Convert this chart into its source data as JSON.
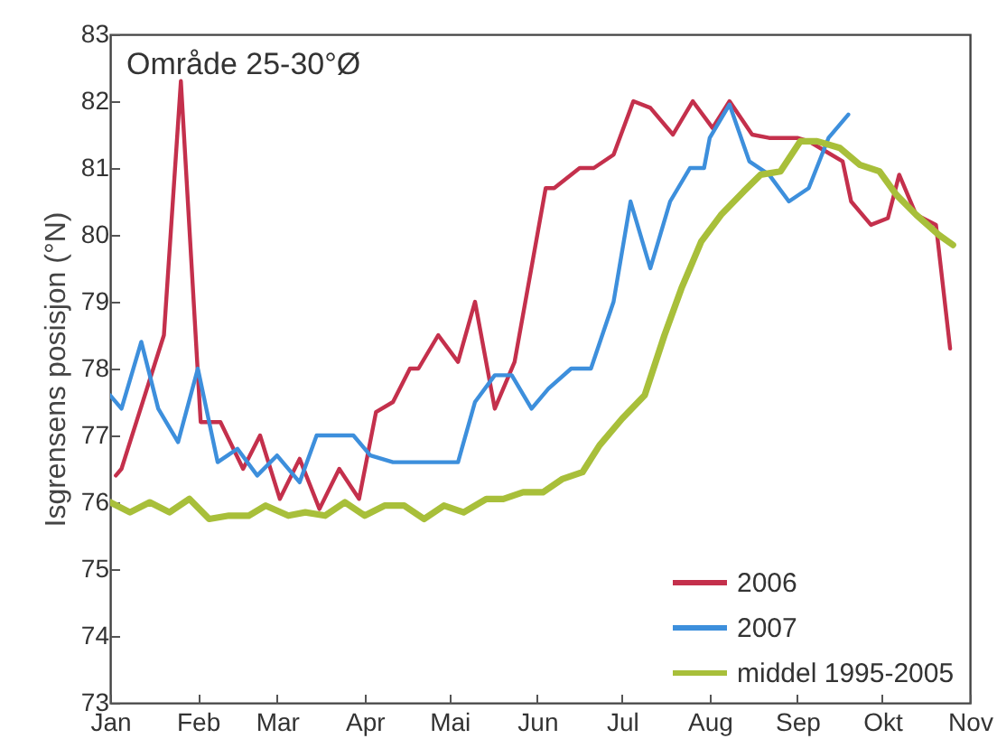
{
  "chart_data": {
    "type": "line",
    "ylabel": "Isgrensens posisjon (°N)",
    "annotations": [
      "Område 25-30°Ø"
    ],
    "xlim": [
      "--01-01",
      "--11-01"
    ],
    "xticks": [
      {
        "value": "--01-01",
        "label": "Jan"
      },
      {
        "value": "--02-01",
        "label": "Feb"
      },
      {
        "value": "--03-01",
        "label": "Mar"
      },
      {
        "value": "--04-01",
        "label": "Apr"
      },
      {
        "value": "--05-01",
        "label": "Mai"
      },
      {
        "value": "--06-01",
        "label": "Jun"
      },
      {
        "value": "--07-01",
        "label": "Jul"
      },
      {
        "value": "--08-01",
        "label": "Aug"
      },
      {
        "value": "--09-01",
        "label": "Sep"
      },
      {
        "value": "--10-01",
        "label": "Okt"
      },
      {
        "value": "--11-01",
        "label": "Nov"
      }
    ],
    "ylim": [
      73,
      83
    ],
    "yticks": [
      73,
      74,
      75,
      76,
      77,
      78,
      79,
      80,
      81,
      82,
      83
    ],
    "legend": "bottom right",
    "series": [
      {
        "name": "2006",
        "color": "#c4304c",
        "x": [
          "--01-03",
          "--01-05",
          "--01-20",
          "--01-26",
          "--02-02",
          "--02-09",
          "--02-17",
          "--02-23",
          "--03-02",
          "--03-09",
          "--03-16",
          "--03-23",
          "--03-30",
          "--04-05",
          "--04-11",
          "--04-17",
          "--04-20",
          "--04-27",
          "--05-04",
          "--05-10",
          "--05-17",
          "--05-24",
          "--06-04",
          "--06-07",
          "--06-16",
          "--06-21",
          "--06-28",
          "--07-05",
          "--07-11",
          "--07-19",
          "--07-26",
          "--08-02",
          "--08-08",
          "--08-16",
          "--08-22",
          "--09-01",
          "--09-05",
          "--09-11",
          "--09-17",
          "--09-20",
          "--09-27",
          "--10-03",
          "--10-07",
          "--10-13",
          "--10-20",
          "--10-25"
        ],
        "values": [
          76.4,
          76.5,
          78.5,
          82.3,
          77.2,
          77.2,
          76.5,
          77.0,
          76.05,
          76.65,
          75.9,
          76.5,
          76.05,
          77.35,
          77.5,
          78.0,
          78.0,
          78.5,
          78.1,
          79.0,
          77.4,
          78.1,
          80.7,
          80.7,
          81.0,
          81.0,
          81.2,
          82.0,
          81.9,
          81.5,
          82.0,
          81.6,
          82.0,
          81.5,
          81.45,
          81.45,
          81.4,
          81.25,
          81.1,
          80.5,
          80.15,
          80.25,
          80.9,
          80.3,
          80.15,
          78.3
        ]
      },
      {
        "name": "2007",
        "color": "#3d8fdc",
        "x": [
          "--01-01",
          "--01-05",
          "--01-12",
          "--01-18",
          "--01-25",
          "--02-01",
          "--02-08",
          "--02-15",
          "--02-22",
          "--03-01",
          "--03-09",
          "--03-15",
          "--03-28",
          "--04-03",
          "--04-11",
          "--05-04",
          "--05-10",
          "--05-17",
          "--05-23",
          "--05-30",
          "--06-05",
          "--06-13",
          "--06-20",
          "--06-28",
          "--07-04",
          "--07-11",
          "--07-18",
          "--07-25",
          "--07-30",
          "--08-01",
          "--08-08",
          "--08-15",
          "--08-22",
          "--08-29",
          "--09-05",
          "--09-12",
          "--09-19"
        ],
        "values": [
          77.6,
          77.4,
          78.4,
          77.4,
          76.9,
          78.0,
          76.6,
          76.8,
          76.4,
          76.7,
          76.3,
          77.0,
          77.0,
          76.7,
          76.6,
          76.6,
          77.5,
          77.9,
          77.9,
          77.4,
          77.7,
          78.0,
          78.0,
          79.0,
          80.5,
          79.5,
          80.5,
          81.0,
          81.0,
          81.45,
          81.95,
          81.1,
          80.9,
          80.5,
          80.7,
          81.45,
          81.8
        ]
      },
      {
        "name": "middel 1995-2005",
        "color": "#a8bf3a",
        "x": [
          "--01-01",
          "--01-08",
          "--01-15",
          "--01-22",
          "--01-29",
          "--02-05",
          "--02-12",
          "--02-19",
          "--02-25",
          "--03-05",
          "--03-11",
          "--03-18",
          "--03-25",
          "--04-01",
          "--04-08",
          "--04-15",
          "--04-22",
          "--04-29",
          "--05-06",
          "--05-14",
          "--05-20",
          "--05-27",
          "--06-03",
          "--06-10",
          "--06-17",
          "--06-23",
          "--07-01",
          "--07-09",
          "--07-16",
          "--07-22",
          "--07-29",
          "--08-05",
          "--08-13",
          "--08-19",
          "--08-26",
          "--09-02",
          "--09-08",
          "--09-16",
          "--09-23",
          "--09-30",
          "--10-06",
          "--10-13",
          "--10-21",
          "--10-26"
        ],
        "values": [
          76.0,
          75.85,
          76.0,
          75.85,
          76.05,
          75.75,
          75.8,
          75.8,
          75.95,
          75.8,
          75.85,
          75.8,
          76.0,
          75.8,
          75.95,
          75.95,
          75.75,
          75.95,
          75.85,
          76.05,
          76.05,
          76.15,
          76.15,
          76.35,
          76.45,
          76.85,
          77.25,
          77.6,
          78.5,
          79.2,
          79.9,
          80.3,
          80.65,
          80.9,
          80.95,
          81.4,
          81.4,
          81.3,
          81.05,
          80.95,
          80.6,
          80.3,
          80.0,
          79.85
        ]
      }
    ]
  }
}
